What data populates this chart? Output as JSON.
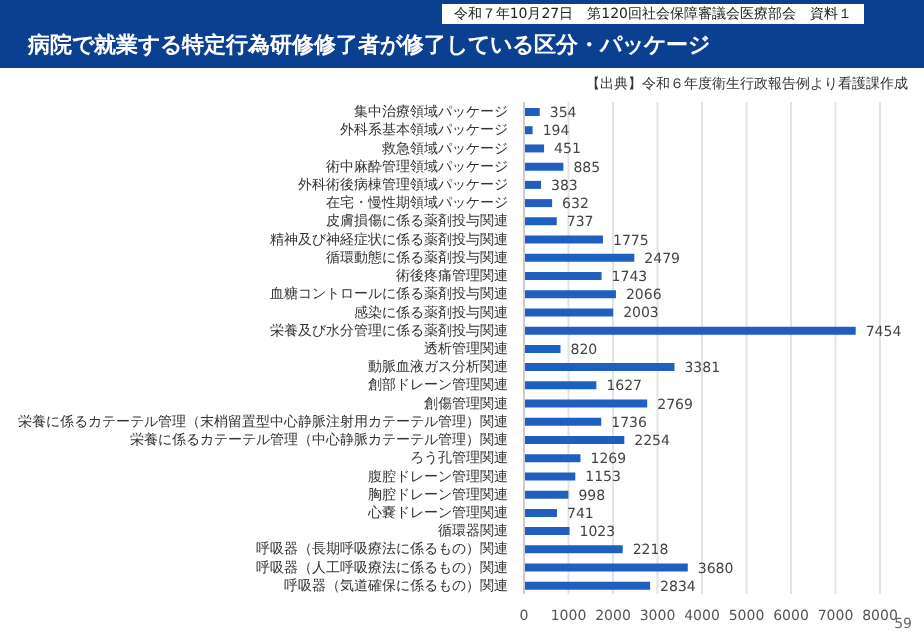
{
  "chart_data": {
    "type": "bar",
    "orientation": "horizontal",
    "title": "病院で就業する特定行為研修修了者が修了している区分・パッケージ",
    "annotations": [
      "令和７年10月27日　第120回社会保障審議会医療部会　資料１",
      "【出典】令和６年度衛生行政報告例より看護課作成",
      "59"
    ],
    "categories": [
      "集中治療領域パッケージ",
      "外科系基本領域パッケージ",
      "救急領域パッケージ",
      "術中麻酔管理領域パッケージ",
      "外科術後病棟管理領域パッケージ",
      "在宅・慢性期領域パッケージ",
      "皮膚損傷に係る薬剤投与関連",
      "精神及び神経症状に係る薬剤投与関連",
      "循環動態に係る薬剤投与関連",
      "術後疼痛管理関連",
      "血糖コントロールに係る薬剤投与関連",
      "感染に係る薬剤投与関連",
      "栄養及び水分管理に係る薬剤投与関連",
      "透析管理関連",
      "動脈血液ガス分析関連",
      "創部ドレーン管理関連",
      "創傷管理関連",
      "栄養に係るカテーテル管理（末梢留置型中心静脈注射用カテーテル管理）関連",
      "栄養に係るカテーテル管理（中心静脈カテーテル管理）関連",
      "ろう孔管理関連",
      "腹腔ドレーン管理関連",
      "胸腔ドレーン管理関連",
      "心嚢ドレーン管理関連",
      "循環器関連",
      "呼吸器（長期呼吸療法に係るもの）関連",
      "呼吸器（人工呼吸療法に係るもの）関連",
      "呼吸器（気道確保に係るもの）関連"
    ],
    "values": [
      354,
      194,
      451,
      885,
      383,
      632,
      737,
      1775,
      2479,
      1743,
      2066,
      2003,
      7454,
      820,
      3381,
      1627,
      2769,
      1736,
      2254,
      1269,
      1153,
      998,
      741,
      1023,
      2218,
      3680,
      2834
    ],
    "color": "#1f5fbf",
    "data_labels": true,
    "xlim": [
      0,
      8000
    ],
    "xticks": [
      0,
      1000,
      2000,
      3000,
      4000,
      5000,
      6000,
      7000,
      8000
    ],
    "grid": "x"
  }
}
